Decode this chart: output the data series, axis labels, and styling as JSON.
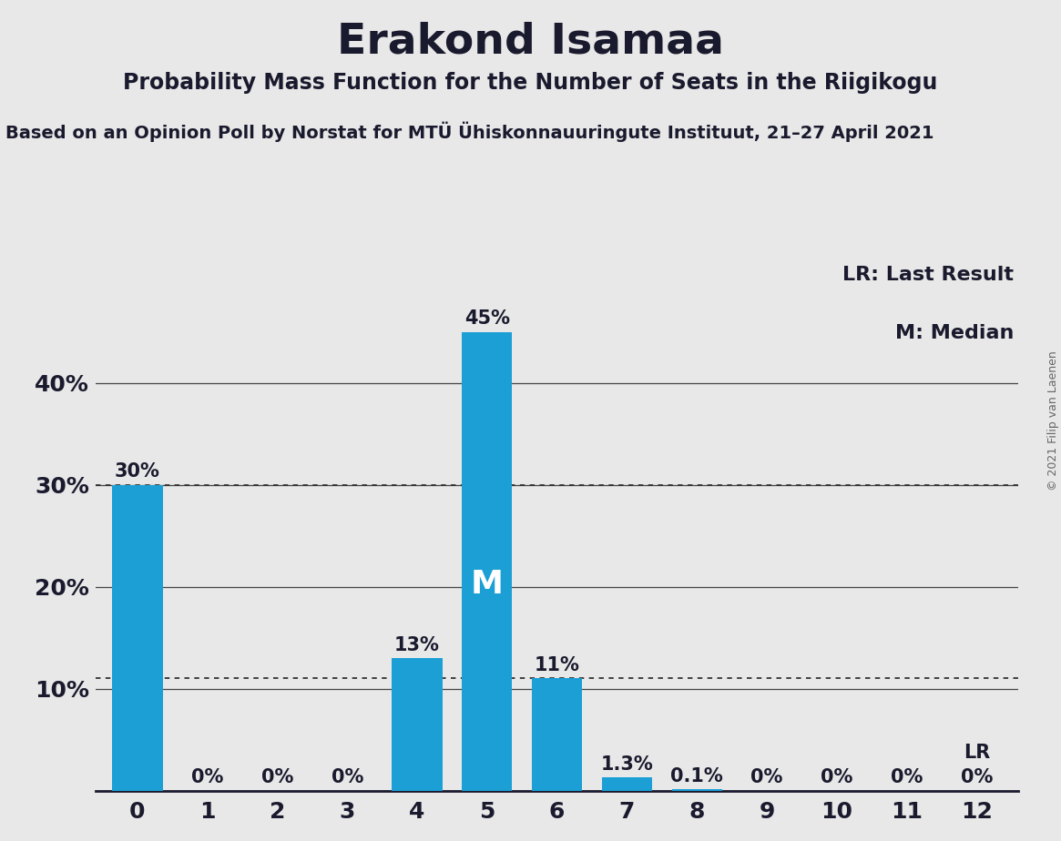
{
  "title": "Erakond Isamaa",
  "subtitle": "Probability Mass Function for the Number of Seats in the Riigikogu",
  "source_line": "Based on an Opinion Poll by Norstat for MTÜ Ühiskonnauuringute Instituut, 21–27 April 2021",
  "copyright": "© 2021 Filip van Laenen",
  "categories": [
    0,
    1,
    2,
    3,
    4,
    5,
    6,
    7,
    8,
    9,
    10,
    11,
    12
  ],
  "values": [
    0.3,
    0.0,
    0.0,
    0.0,
    0.13,
    0.45,
    0.11,
    0.013,
    0.001,
    0.0,
    0.0,
    0.0,
    0.0
  ],
  "bar_color": "#1b9fd5",
  "bar_labels": [
    "30%",
    "0%",
    "0%",
    "0%",
    "13%",
    "45%",
    "11%",
    "1.3%",
    "0.1%",
    "0%",
    "0%",
    "0%",
    "0%"
  ],
  "median_bar": 5,
  "median_label": "M",
  "lr_bar": 12,
  "lr_label": "LR",
  "dotted_line_value_1": 0.3,
  "dotted_line_value_2": 0.11,
  "legend_lr": "LR: Last Result",
  "legend_m": "M: Median",
  "background_color": "#e8e8e8",
  "yticks": [
    0.1,
    0.2,
    0.3,
    0.4
  ],
  "ytick_labels": [
    "10%",
    "20%",
    "30%",
    "40%"
  ],
  "ylim": [
    0,
    0.52
  ],
  "title_fontsize": 34,
  "subtitle_fontsize": 17,
  "source_fontsize": 14,
  "tick_fontsize": 18,
  "bar_label_fontsize": 15,
  "legend_fontsize": 16
}
